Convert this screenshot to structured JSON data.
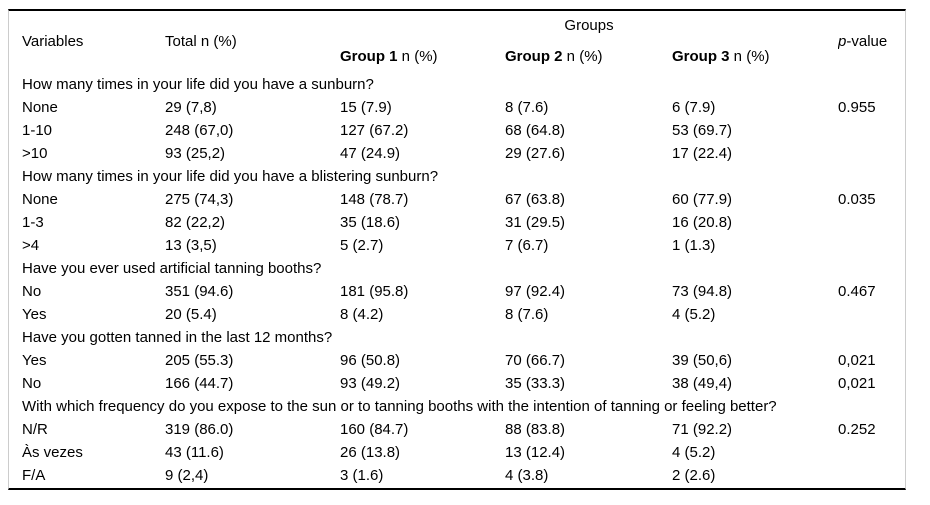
{
  "table": {
    "header": {
      "variables": "Variables",
      "total": "Total n (%)",
      "groups": "Groups",
      "group_columns": [
        {
          "name": "Group 1",
          "suffix": " n (%)"
        },
        {
          "name": "Group 2",
          "suffix": " n (%)"
        },
        {
          "name": "Group 3",
          "suffix": " n (%)"
        }
      ],
      "p_value": {
        "italic": "p",
        "suffix": "-value"
      }
    },
    "sections": [
      {
        "title": "How many times in your life did you have a sunburn?",
        "rows": [
          {
            "label": "None",
            "cells": [
              "29 (7,8)",
              "15 (7.9)",
              "8 (7.6)",
              "6 (7.9)",
              "0.955"
            ]
          },
          {
            "label": "1-10",
            "cells": [
              "248 (67,0)",
              "127 (67.2)",
              "68 (64.8)",
              "53 (69.7)",
              ""
            ]
          },
          {
            "label": ">10",
            "cells": [
              "93 (25,2)",
              "47 (24.9)",
              "29 (27.6)",
              "17 (22.4)",
              ""
            ]
          }
        ]
      },
      {
        "title": "How many times in your life did you have a blistering sunburn?",
        "rows": [
          {
            "label": "None",
            "cells": [
              "275 (74,3)",
              "148 (78.7)",
              "67 (63.8)",
              "60 (77.9)",
              "0.035"
            ]
          },
          {
            "label": "1-3",
            "cells": [
              "82 (22,2)",
              "35 (18.6)",
              "31 (29.5)",
              "16 (20.8)",
              ""
            ]
          },
          {
            "label": ">4",
            "cells": [
              "13 (3,5)",
              "5 (2.7)",
              "7 (6.7)",
              "1 (1.3)",
              ""
            ]
          }
        ]
      },
      {
        "title": "Have you ever used artificial tanning booths?",
        "rows": [
          {
            "label": "No",
            "cells": [
              "351 (94.6)",
              "181 (95.8)",
              "97 (92.4)",
              "73 (94.8)",
              "0.467"
            ]
          },
          {
            "label": "Yes",
            "cells": [
              "20 (5.4)",
              "8 (4.2)",
              "8 (7.6)",
              "4 (5.2)",
              ""
            ]
          }
        ]
      },
      {
        "title": "Have you gotten tanned in the last 12 months?",
        "rows": [
          {
            "label": "Yes",
            "cells": [
              "205 (55.3)",
              "96 (50.8)",
              "70 (66.7)",
              "39 (50,6)",
              "0,021"
            ]
          },
          {
            "label": "No",
            "cells": [
              "166 (44.7)",
              "93 (49.2)",
              "35 (33.3)",
              "38 (49,4)",
              "0,021"
            ]
          }
        ]
      },
      {
        "title": "With which frequency do you expose to the sun or to tanning booths with the intention of tanning or feeling better?",
        "rows": [
          {
            "label": "N/R",
            "cells": [
              "319 (86.0)",
              "160 (84.7)",
              "88 (83.8)",
              "71 (92.2)",
              "0.252"
            ]
          },
          {
            "label": "Às vezes",
            "cells": [
              "43 (11.6)",
              "26 (13.8)",
              "13 (12.4)",
              "4 (5.2)",
              ""
            ]
          },
          {
            "label": "F/A",
            "cells": [
              "9 (2,4)",
              "3 (1.6)",
              "4 (3.8)",
              "2 (2.6)",
              ""
            ]
          }
        ]
      }
    ],
    "colors": {
      "rule": "#000000",
      "frame_side": "#cccccc",
      "text": "#000000",
      "background": "#ffffff"
    }
  }
}
